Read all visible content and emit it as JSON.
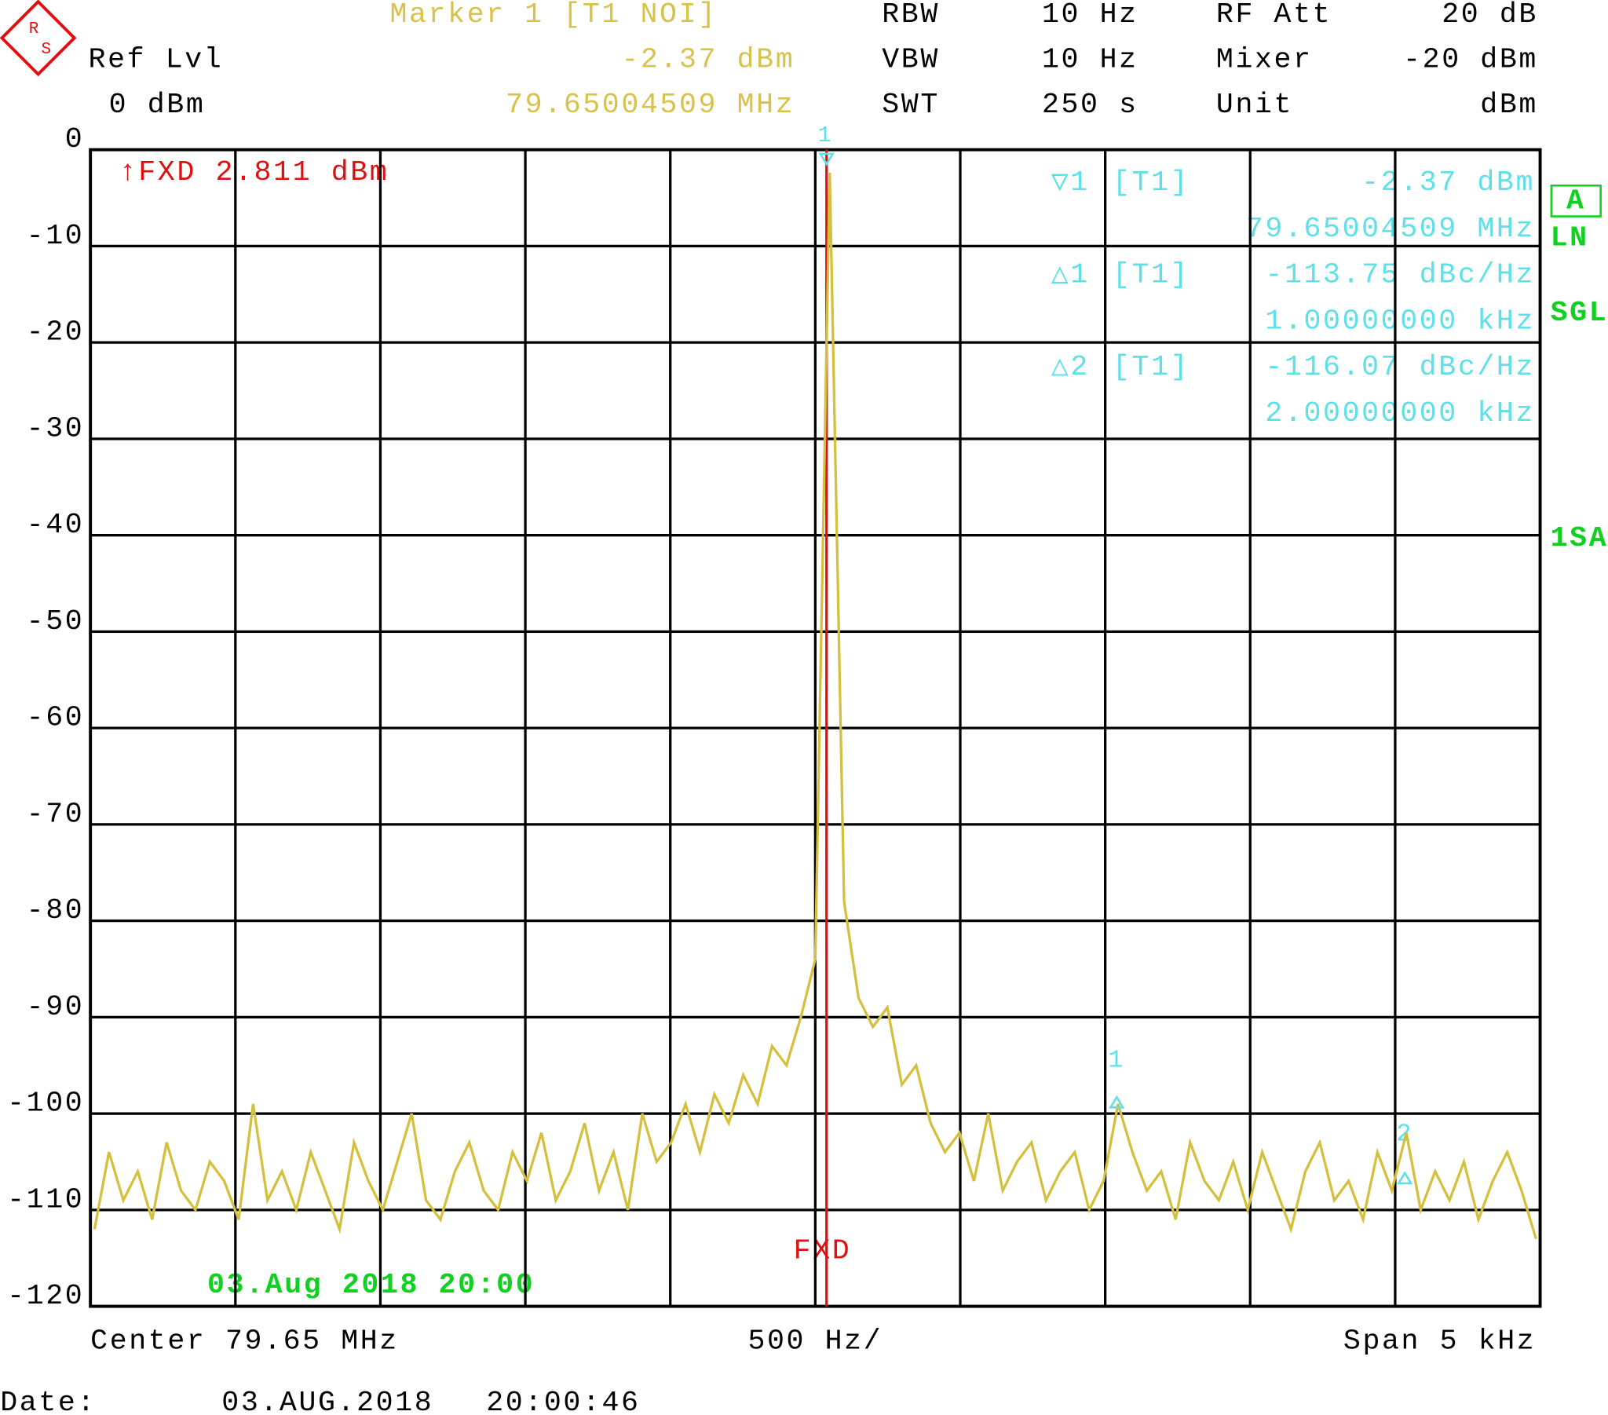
{
  "header": {
    "marker_title": "Marker 1 [T1 NOI]",
    "marker_level": "-2.37 dBm",
    "marker_freq": "79.65004509 MHz",
    "ref_label": "Ref Lvl",
    "ref_value": "0 dBm",
    "settings": [
      [
        "RBW",
        "10 Hz"
      ],
      [
        "VBW",
        "10 Hz"
      ],
      [
        "SWT",
        "250 s"
      ],
      [
        "RF Att",
        "20 dB"
      ],
      [
        "Mixer",
        "-20 dBm"
      ],
      [
        "Unit",
        "dBm"
      ]
    ]
  },
  "markers": [
    {
      "symbol": "▽1",
      "trace": "[T1]",
      "level": "-2.37 dBm",
      "freq": "79.65004509 MHz"
    },
    {
      "symbol": "△1",
      "trace": "[T1]",
      "level": "-113.75 dBc/Hz",
      "freq": "1.00000000 kHz"
    },
    {
      "symbol": "△2",
      "trace": "[T1]",
      "level": "-116.07 dBc/Hz",
      "freq": "2.00000000 kHz"
    }
  ],
  "display_line": {
    "label": "↑FXD 2.811 dBm",
    "tag": "FXD"
  },
  "plot_labels": {
    "peak": "1",
    "delta1": "1",
    "delta2": "2",
    "timestamp": "03.Aug 2018 20:00"
  },
  "side_labels": [
    "A",
    "LN",
    "SGL",
    "1SA"
  ],
  "footer": {
    "center": "Center 79.65 MHz",
    "div": "500 Hz/",
    "span": "Span 5 kHz",
    "date_label": "Date:",
    "date": "03.AUG.2018",
    "time": "20:00:46"
  },
  "chart_data": {
    "type": "line",
    "ylim": [
      -120,
      0
    ],
    "yticks": [
      0,
      -10,
      -20,
      -30,
      -40,
      -50,
      -60,
      -70,
      -80,
      -90,
      -100,
      -110,
      -120
    ],
    "grid": true,
    "series": [
      {
        "color": "#d4c03c",
        "values": [
          -112,
          -104,
          -109,
          -106,
          -111,
          -103,
          -108,
          -110,
          -105,
          -107,
          -111,
          -99,
          -109,
          -106,
          -110,
          -104,
          -108,
          -112,
          -103,
          -107,
          -110,
          -105,
          -100,
          -109,
          -111,
          -106,
          -103,
          -108,
          -110,
          -104,
          -107,
          -102,
          -109,
          -106,
          -101,
          -108,
          -104,
          -110,
          -100,
          -105,
          -103,
          -99,
          -104,
          -98,
          -101,
          -96,
          -99,
          -93,
          -95,
          -90,
          -84,
          -2.37,
          -78,
          -88,
          -91,
          -89,
          -97,
          -95,
          -101,
          -104,
          -102,
          -107,
          -100,
          -108,
          -105,
          -103,
          -109,
          -106,
          -104,
          -110,
          -107,
          -99,
          -104,
          -108,
          -106,
          -111,
          -103,
          -107,
          -109,
          -105,
          -110,
          -104,
          -108,
          -112,
          -106,
          -103,
          -109,
          -107,
          -111,
          -104,
          -108,
          -102,
          -110,
          -106,
          -109,
          -105,
          -111,
          -107,
          -104,
          -108,
          -113
        ]
      }
    ]
  }
}
